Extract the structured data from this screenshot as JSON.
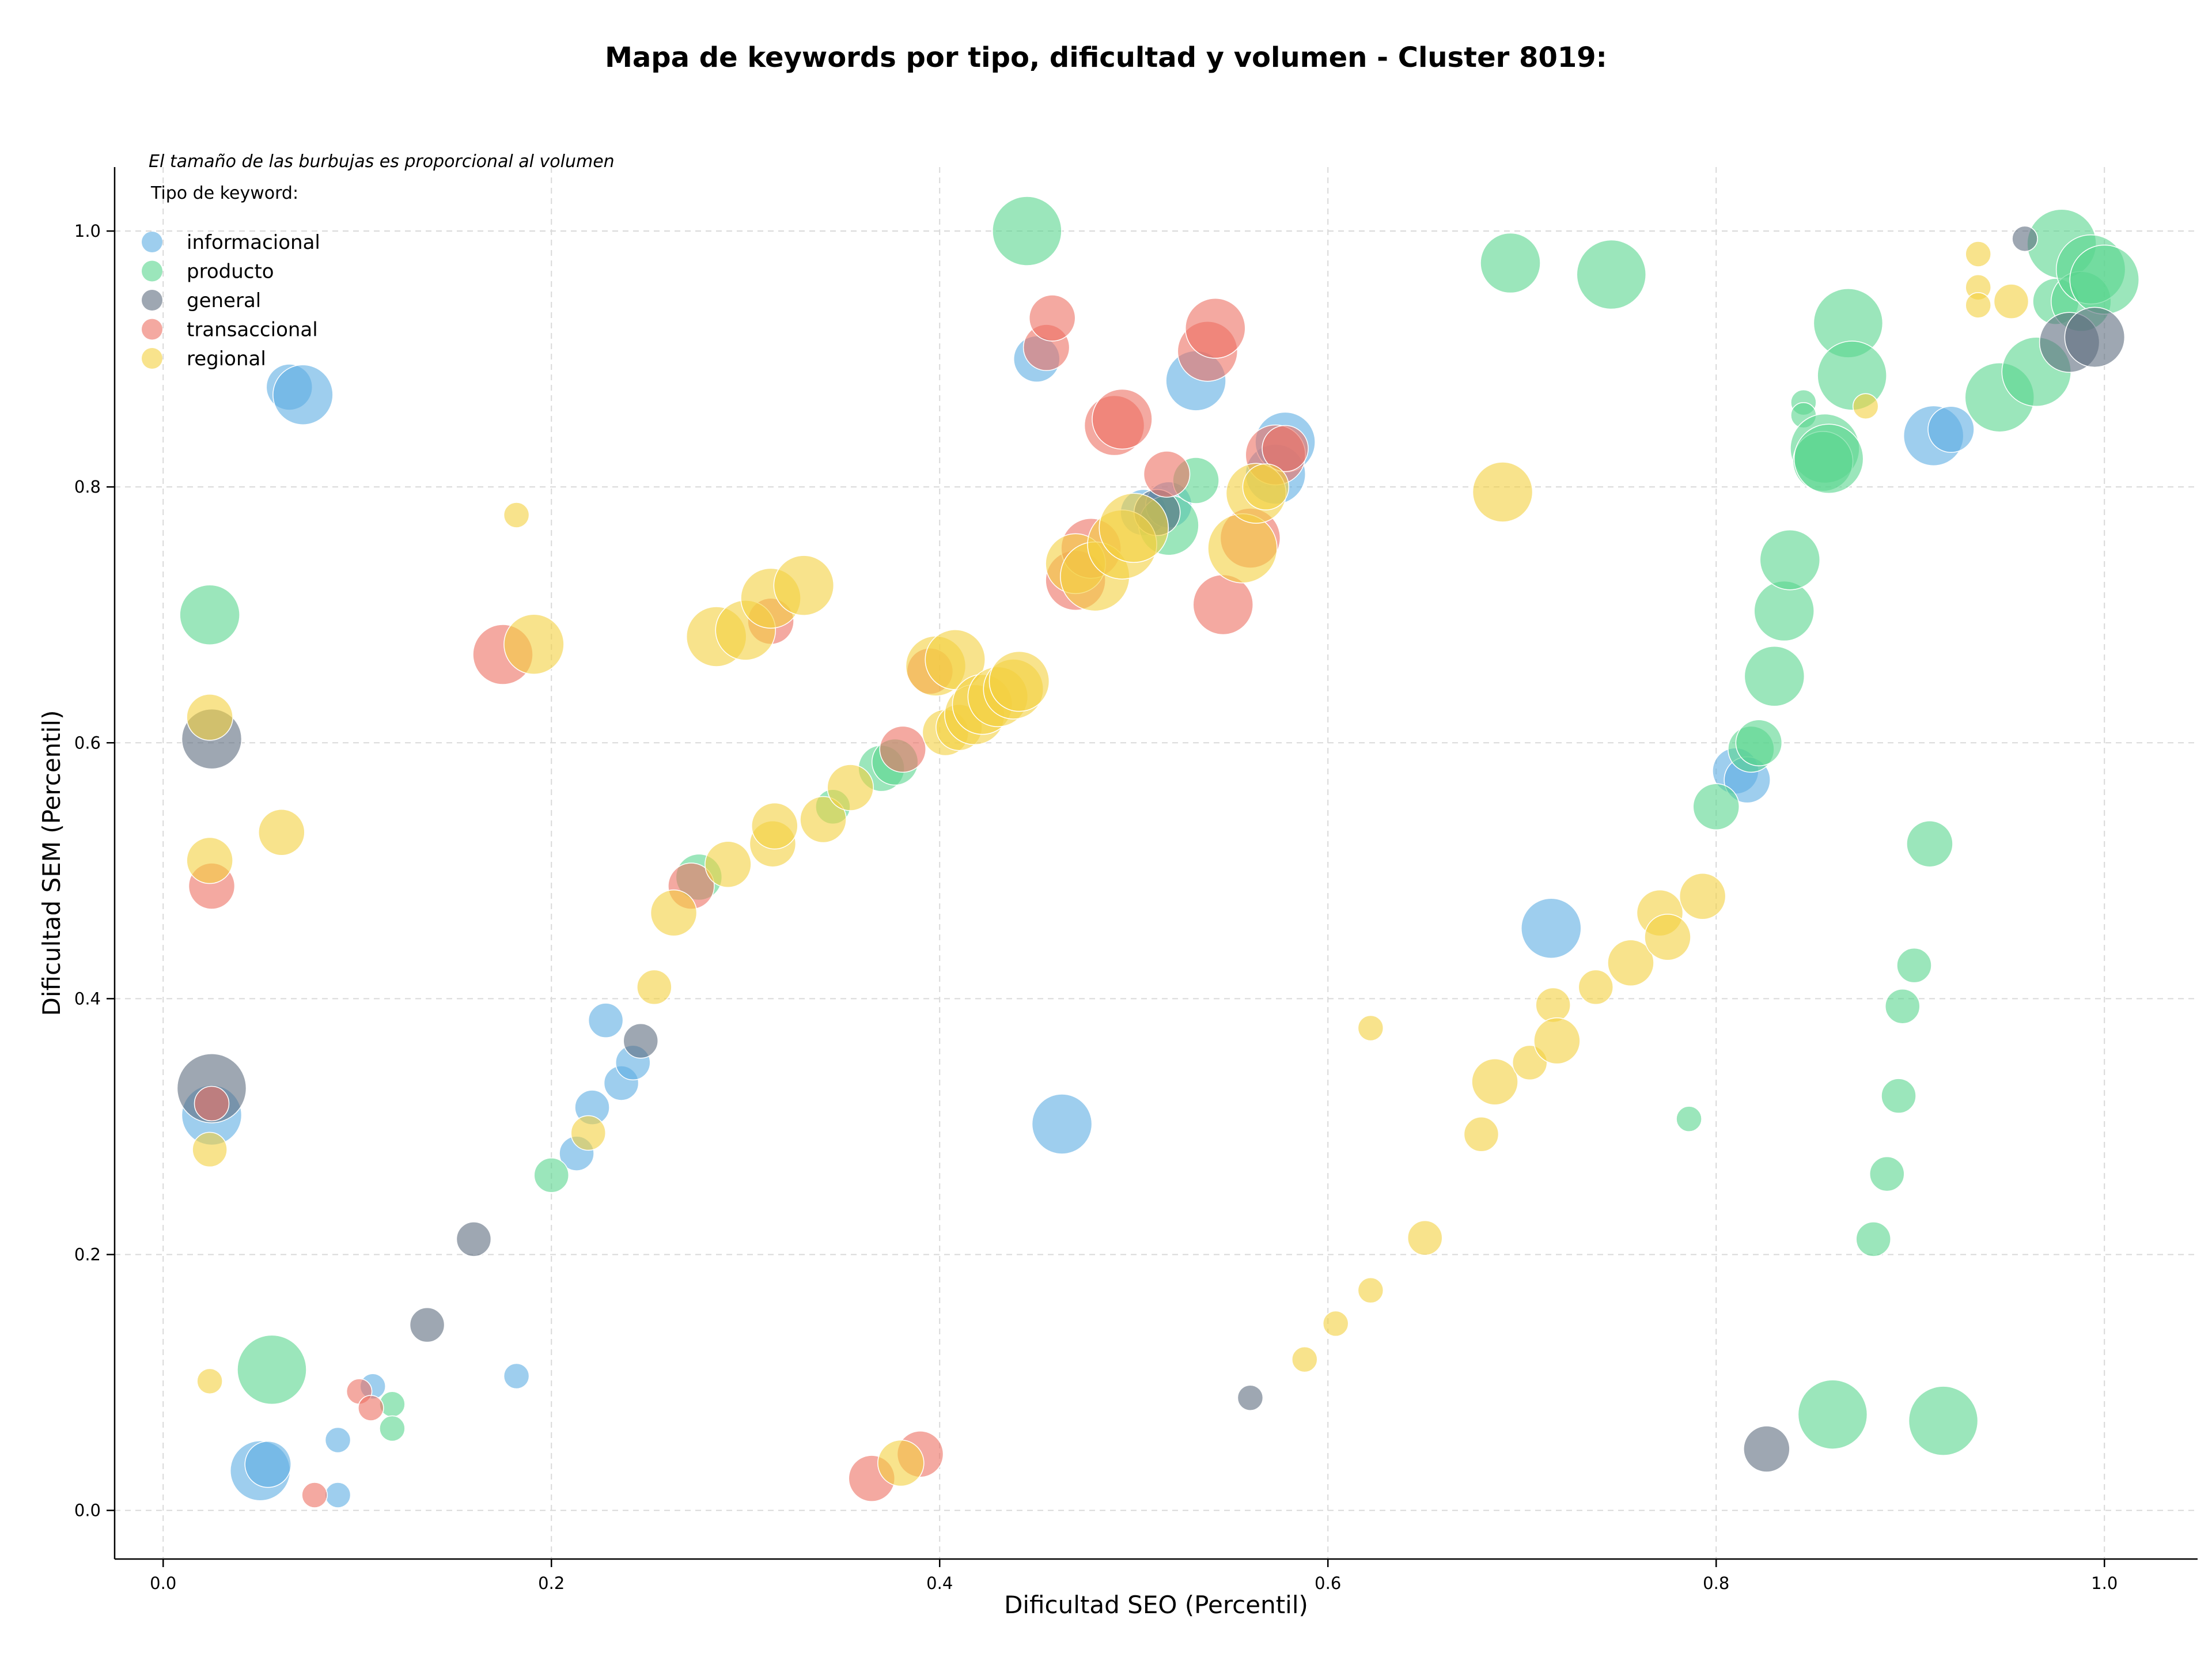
{
  "chart_data": {
    "type": "scatter",
    "title": "Mapa de keywords por tipo, dificultad y volumen - Cluster 8019:",
    "xlabel": "Dificultad SEO (Percentil)",
    "ylabel": "Dificultad SEM (Percentil)",
    "xlim": [
      -0.025,
      1.048
    ],
    "ylim": [
      -0.038,
      1.05
    ],
    "xticks": [
      "0.0",
      "0.2",
      "0.4",
      "0.6",
      "0.8",
      "1.0"
    ],
    "yticks": [
      "0.0",
      "0.2",
      "0.4",
      "0.6",
      "0.8",
      "1.0"
    ],
    "grid": true,
    "note": "El tamaño de las burbujas es proporcional al volumen",
    "legend": {
      "title": "Tipo de keyword:",
      "placement": "top-left"
    },
    "series": [
      {
        "name": "informacional",
        "color": "#5DADE2",
        "points": [
          [
            0.065,
            0.878,
            3
          ],
          [
            0.072,
            0.872,
            4
          ],
          [
            0.025,
            0.309,
            4
          ],
          [
            0.05,
            0.031,
            4
          ],
          [
            0.054,
            0.036,
            3
          ],
          [
            0.09,
            0.055,
            1
          ],
          [
            0.09,
            0.012,
            1
          ],
          [
            0.108,
            0.097,
            1
          ],
          [
            0.182,
            0.105,
            1
          ],
          [
            0.213,
            0.279,
            2
          ],
          [
            0.221,
            0.315,
            2
          ],
          [
            0.236,
            0.334,
            2
          ],
          [
            0.242,
            0.35,
            2
          ],
          [
            0.228,
            0.383,
            2
          ],
          [
            0.45,
            0.9,
            3
          ],
          [
            0.463,
            0.302,
            4
          ],
          [
            0.505,
            0.78,
            3
          ],
          [
            0.518,
            0.786,
            3
          ],
          [
            0.532,
            0.883,
            4
          ],
          [
            0.573,
            0.81,
            4
          ],
          [
            0.578,
            0.835,
            4
          ],
          [
            0.715,
            0.455,
            4
          ],
          [
            0.81,
            0.578,
            3
          ],
          [
            0.816,
            0.571,
            3
          ],
          [
            0.912,
            0.84,
            4
          ],
          [
            0.921,
            0.845,
            3
          ]
        ]
      },
      {
        "name": "producto",
        "color": "#58D68D",
        "points": [
          [
            0.024,
            0.7,
            4
          ],
          [
            0.056,
            0.11,
            5
          ],
          [
            0.118,
            0.083,
            1
          ],
          [
            0.118,
            0.064,
            1
          ],
          [
            0.2,
            0.262,
            2
          ],
          [
            0.276,
            0.495,
            3
          ],
          [
            0.345,
            0.55,
            2
          ],
          [
            0.37,
            0.58,
            3
          ],
          [
            0.377,
            0.585,
            3
          ],
          [
            0.445,
            1.0,
            5
          ],
          [
            0.518,
            0.77,
            4
          ],
          [
            0.532,
            0.805,
            3
          ],
          [
            0.694,
            0.975,
            4
          ],
          [
            0.746,
            0.966,
            5
          ],
          [
            0.786,
            0.306,
            1
          ],
          [
            0.8,
            0.55,
            3
          ],
          [
            0.818,
            0.595,
            3
          ],
          [
            0.822,
            0.6,
            3
          ],
          [
            0.83,
            0.652,
            4
          ],
          [
            0.835,
            0.703,
            4
          ],
          [
            0.838,
            0.743,
            4
          ],
          [
            0.845,
            0.866,
            1
          ],
          [
            0.845,
            0.856,
            1
          ],
          [
            0.856,
            0.83,
            5
          ],
          [
            0.855,
            0.82,
            4
          ],
          [
            0.868,
            0.928,
            5
          ],
          [
            0.87,
            0.887,
            5
          ],
          [
            0.858,
            0.822,
            5
          ],
          [
            0.881,
            0.212,
            2
          ],
          [
            0.888,
            0.263,
            2
          ],
          [
            0.894,
            0.324,
            2
          ],
          [
            0.896,
            0.394,
            2
          ],
          [
            0.902,
            0.426,
            2
          ],
          [
            0.91,
            0.521,
            3
          ],
          [
            0.86,
            0.075,
            5
          ],
          [
            0.917,
            0.07,
            5
          ],
          [
            0.946,
            0.87,
            5
          ],
          [
            0.965,
            0.89,
            5
          ],
          [
            0.975,
            0.945,
            3
          ],
          [
            0.978,
            0.99,
            5
          ],
          [
            0.988,
            0.945,
            4
          ],
          [
            0.993,
            0.97,
            5
          ],
          [
            1.0,
            0.962,
            5
          ]
        ]
      },
      {
        "name": "general",
        "color": "#5D6D7E",
        "points": [
          [
            0.025,
            0.603,
            4
          ],
          [
            0.025,
            0.33,
            5
          ],
          [
            0.246,
            0.367,
            2
          ],
          [
            0.16,
            0.212,
            2
          ],
          [
            0.136,
            0.145,
            2
          ],
          [
            0.512,
            0.78,
            3
          ],
          [
            0.56,
            0.088,
            1
          ],
          [
            0.826,
            0.048,
            3
          ],
          [
            0.959,
            0.994,
            1
          ],
          [
            0.982,
            0.913,
            4
          ],
          [
            0.995,
            0.917,
            4
          ]
        ]
      },
      {
        "name": "transaccional",
        "color": "#EC7063",
        "points": [
          [
            0.025,
            0.318,
            2
          ],
          [
            0.025,
            0.488,
            3
          ],
          [
            0.078,
            0.012,
            1
          ],
          [
            0.101,
            0.093,
            1
          ],
          [
            0.107,
            0.08,
            1
          ],
          [
            0.175,
            0.669,
            4
          ],
          [
            0.272,
            0.488,
            3
          ],
          [
            0.313,
            0.695,
            3
          ],
          [
            0.365,
            0.025,
            3
          ],
          [
            0.39,
            0.044,
            3
          ],
          [
            0.381,
            0.595,
            3
          ],
          [
            0.395,
            0.656,
            3
          ],
          [
            0.455,
            0.909,
            3
          ],
          [
            0.458,
            0.932,
            3
          ],
          [
            0.47,
            0.727,
            4
          ],
          [
            0.478,
            0.752,
            4
          ],
          [
            0.49,
            0.848,
            4
          ],
          [
            0.494,
            0.853,
            4
          ],
          [
            0.517,
            0.81,
            3
          ],
          [
            0.538,
            0.906,
            4
          ],
          [
            0.542,
            0.924,
            4
          ],
          [
            0.546,
            0.708,
            4
          ],
          [
            0.56,
            0.76,
            4
          ],
          [
            0.573,
            0.825,
            4
          ],
          [
            0.578,
            0.83,
            3
          ]
        ]
      },
      {
        "name": "regional",
        "color": "#F4D03F",
        "points": [
          [
            0.024,
            0.62,
            3
          ],
          [
            0.024,
            0.508,
            3
          ],
          [
            0.024,
            0.282,
            2
          ],
          [
            0.024,
            0.101,
            1
          ],
          [
            0.061,
            0.53,
            3
          ],
          [
            0.182,
            0.778,
            1
          ],
          [
            0.191,
            0.677,
            4
          ],
          [
            0.219,
            0.295,
            2
          ],
          [
            0.253,
            0.409,
            2
          ],
          [
            0.263,
            0.467,
            3
          ],
          [
            0.285,
            0.683,
            4
          ],
          [
            0.291,
            0.505,
            3
          ],
          [
            0.3,
            0.688,
            4
          ],
          [
            0.313,
            0.713,
            4
          ],
          [
            0.314,
            0.521,
            3
          ],
          [
            0.315,
            0.535,
            3
          ],
          [
            0.33,
            0.723,
            4
          ],
          [
            0.34,
            0.54,
            3
          ],
          [
            0.354,
            0.565,
            3
          ],
          [
            0.38,
            0.037,
            3
          ],
          [
            0.398,
            0.66,
            4
          ],
          [
            0.403,
            0.608,
            3
          ],
          [
            0.408,
            0.665,
            4
          ],
          [
            0.41,
            0.612,
            3
          ],
          [
            0.418,
            0.622,
            4
          ],
          [
            0.422,
            0.63,
            4
          ],
          [
            0.43,
            0.636,
            4
          ],
          [
            0.438,
            0.642,
            4
          ],
          [
            0.441,
            0.648,
            4
          ],
          [
            0.47,
            0.74,
            4
          ],
          [
            0.48,
            0.73,
            5
          ],
          [
            0.494,
            0.755,
            5
          ],
          [
            0.5,
            0.768,
            5
          ],
          [
            0.556,
            0.752,
            5
          ],
          [
            0.563,
            0.795,
            4
          ],
          [
            0.568,
            0.8,
            3
          ],
          [
            0.588,
            0.118,
            1
          ],
          [
            0.604,
            0.146,
            1
          ],
          [
            0.622,
            0.172,
            1
          ],
          [
            0.622,
            0.377,
            1
          ],
          [
            0.65,
            0.213,
            2
          ],
          [
            0.679,
            0.294,
            2
          ],
          [
            0.686,
            0.335,
            3
          ],
          [
            0.69,
            0.796,
            4
          ],
          [
            0.704,
            0.35,
            2
          ],
          [
            0.716,
            0.395,
            2
          ],
          [
            0.718,
            0.367,
            3
          ],
          [
            0.738,
            0.409,
            2
          ],
          [
            0.756,
            0.428,
            3
          ],
          [
            0.771,
            0.467,
            3
          ],
          [
            0.775,
            0.448,
            3
          ],
          [
            0.793,
            0.48,
            3
          ],
          [
            0.877,
            0.863,
            1
          ],
          [
            0.935,
            0.982,
            1
          ],
          [
            0.935,
            0.956,
            1
          ],
          [
            0.935,
            0.942,
            1
          ],
          [
            0.952,
            0.945,
            2
          ]
        ]
      }
    ]
  }
}
